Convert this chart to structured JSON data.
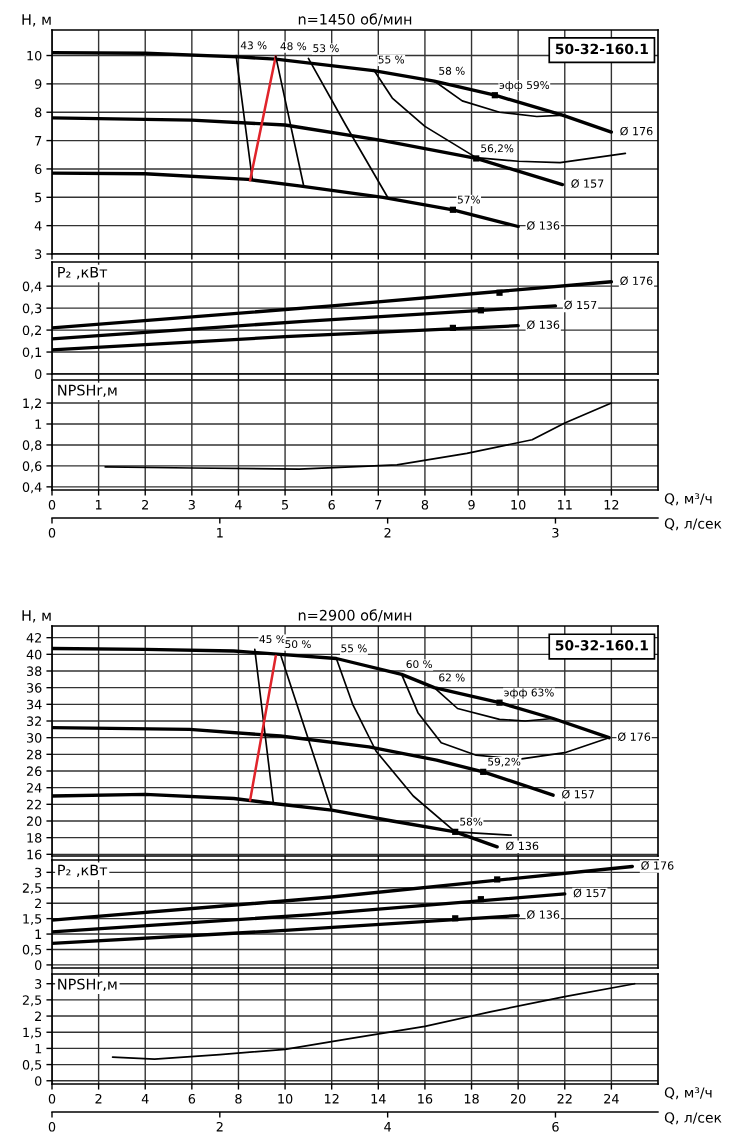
{
  "chart_data": [
    {
      "type": "line",
      "title": "n=1450 об/мин",
      "ylabel": "H, м",
      "xlim": [
        0,
        13
      ],
      "xticks": [
        0,
        1,
        2,
        3,
        4,
        5,
        6,
        7,
        8,
        9,
        10,
        11,
        12
      ],
      "ylim": [
        3,
        10.9
      ],
      "yticks": [
        3,
        4,
        5,
        6,
        7,
        8,
        9,
        10
      ],
      "tick_labels": "y",
      "grid": true,
      "legend": false,
      "marker": "none",
      "annotations": [
        "50-32-160.1",
        {
          "text": "43 %",
          "x": 3.95,
          "y": 10.0
        },
        {
          "text": "48 %",
          "x": 4.8,
          "y": 9.97
        },
        {
          "text": "53 %",
          "x": 5.5,
          "y": 9.9
        },
        {
          "text": "55 %",
          "x": 6.9,
          "y": 9.5
        },
        {
          "text": "58 %",
          "x": 8.2,
          "y": 9.1
        },
        {
          "text": "эфф 59%",
          "x": 9.5,
          "y": 8.6
        },
        {
          "text": "56,2%",
          "x": 9.1,
          "y": 6.37
        },
        {
          "text": "57%",
          "x": 8.6,
          "y": 4.56
        }
      ],
      "series": [
        {
          "name": "Ø 176",
          "color": "#000000",
          "x": [
            0,
            2,
            4,
            4.8,
            6.9,
            8.2,
            9.5,
            10.95,
            12
          ],
          "values": [
            10.1,
            10.08,
            9.95,
            9.87,
            9.47,
            9.1,
            8.6,
            7.9,
            7.3
          ]
        },
        {
          "name": "Ø 157",
          "color": "#000000",
          "x": [
            0,
            3,
            5,
            7.1,
            9.1,
            10.95
          ],
          "values": [
            7.8,
            7.72,
            7.55,
            7.0,
            6.37,
            5.45
          ]
        },
        {
          "name": "Ø 136",
          "color": "#000000",
          "x": [
            0,
            2,
            4.2,
            5.3,
            7.1,
            8.6,
            10
          ],
          "values": [
            5.85,
            5.83,
            5.63,
            5.4,
            5.0,
            4.56,
            3.97
          ]
        },
        {
          "color": "#000000",
          "x": [
            3.95,
            4.3
          ],
          "values": [
            10.0,
            5.6
          ]
        },
        {
          "color": "#e0242b",
          "x": [
            4.25,
            4.8
          ],
          "values": [
            5.6,
            9.97
          ]
        },
        {
          "color": "#000000",
          "x": [
            4.8,
            5.4
          ],
          "values": [
            9.97,
            5.4
          ]
        },
        {
          "color": "#000000",
          "x": [
            5.5,
            6.3,
            7.2
          ],
          "values": [
            9.9,
            7.55,
            5.0
          ]
        },
        {
          "color": "#000000",
          "x": [
            6.9,
            7.3,
            8.0,
            9.1,
            10.0,
            10.9,
            12.3
          ],
          "values": [
            9.5,
            8.5,
            7.5,
            6.4,
            6.27,
            6.22,
            6.55
          ]
        },
        {
          "color": "#000000",
          "x": [
            8.2,
            8.8,
            9.6,
            10.4,
            11.0
          ],
          "values": [
            9.1,
            8.4,
            8.0,
            7.85,
            7.9
          ]
        },
        {
          "type": "scatter",
          "marker": "square",
          "color": "#000000",
          "x": [
            9.5,
            9.1,
            8.6
          ],
          "values": [
            8.6,
            6.37,
            4.56
          ]
        }
      ]
    },
    {
      "type": "line",
      "ylabel": "P₂ ,кВт",
      "xlim": [
        0,
        13
      ],
      "xticks": [
        0,
        1,
        2,
        3,
        4,
        5,
        6,
        7,
        8,
        9,
        10,
        11,
        12
      ],
      "ylim": [
        0,
        0.51
      ],
      "yticks": [
        0,
        {
          "value": 0.1,
          "label": "0,1"
        },
        {
          "value": 0.2,
          "label": "0,2"
        },
        {
          "value": 0.3,
          "label": "0,3"
        },
        {
          "value": 0.4,
          "label": "0,4"
        }
      ],
      "tick_labels": "y",
      "grid": true,
      "legend": false,
      "marker": "none",
      "series": [
        {
          "name": "Ø 176",
          "color": "#000000",
          "x": [
            0,
            6,
            12
          ],
          "values": [
            0.21,
            0.31,
            0.42
          ]
        },
        {
          "name": "Ø 157",
          "color": "#000000",
          "x": [
            0,
            5.4,
            10.8
          ],
          "values": [
            0.16,
            0.24,
            0.31
          ]
        },
        {
          "name": "Ø 136",
          "color": "#000000",
          "x": [
            0,
            5,
            10
          ],
          "values": [
            0.11,
            0.17,
            0.22
          ]
        },
        {
          "type": "scatter",
          "marker": "square",
          "color": "#000000",
          "x": [
            9.6,
            9.2,
            8.6
          ],
          "values": [
            0.37,
            0.29,
            0.21
          ]
        }
      ]
    },
    {
      "type": "line",
      "ylabel": "NPSHr,м",
      "xlabel": "Q, м³/ч",
      "x2label": "Q, л/сек",
      "xlim": [
        0,
        13
      ],
      "xticks": [
        0,
        1,
        2,
        3,
        4,
        5,
        6,
        7,
        8,
        9,
        10,
        11,
        12
      ],
      "x2lim": [
        0,
        3.611
      ],
      "x2ticks": [
        0,
        1,
        2,
        3
      ],
      "ylim": [
        0.37,
        1.42
      ],
      "yticks": [
        {
          "value": 0.4,
          "label": "0,4"
        },
        {
          "value": 0.6,
          "label": "0,6"
        },
        {
          "value": 0.8,
          "label": "0,8"
        },
        1,
        {
          "value": 1.2,
          "label": "1,2"
        }
      ],
      "grid": true,
      "legend": false,
      "marker": "none",
      "series": [
        {
          "color": "#000000",
          "x": [
            1.14,
            3,
            5.3,
            7.4,
            8.9,
            10.3,
            11.0,
            12
          ],
          "values": [
            0.59,
            0.58,
            0.57,
            0.61,
            0.72,
            0.85,
            1.01,
            1.2
          ]
        }
      ]
    },
    {
      "type": "line",
      "title": "n=2900 об/мин",
      "ylabel": "H, м",
      "xlim": [
        0,
        26
      ],
      "xticks": [
        0,
        2,
        4,
        6,
        8,
        10,
        12,
        14,
        16,
        18,
        20,
        22,
        24
      ],
      "ylim": [
        15.8,
        43.4
      ],
      "yticks": [
        16,
        18,
        20,
        22,
        24,
        26,
        28,
        30,
        32,
        34,
        36,
        38,
        40,
        42
      ],
      "tick_labels": "y",
      "grid": true,
      "legend": false,
      "marker": "none",
      "annotations": [
        "50-32-160.1",
        {
          "text": "45 %",
          "x": 8.7,
          "y": 40.6
        },
        {
          "text": "50 %",
          "x": 9.8,
          "y": 40.0
        },
        {
          "text": "55 %",
          "x": 12.2,
          "y": 39.5
        },
        {
          "text": "60 %",
          "x": 15.0,
          "y": 37.6
        },
        {
          "text": "62 %",
          "x": 16.4,
          "y": 36.0
        },
        {
          "text": "эфф 63%",
          "x": 19.2,
          "y": 34.2
        },
        {
          "text": "59,2%",
          "x": 18.5,
          "y": 25.9
        },
        {
          "text": "58%",
          "x": 17.3,
          "y": 18.7
        }
      ],
      "series": [
        {
          "name": "Ø 176",
          "color": "#000000",
          "x": [
            0,
            4,
            7.8,
            9.8,
            12.2,
            15.0,
            16.4,
            19.2,
            21.5,
            23.9
          ],
          "values": [
            40.7,
            40.6,
            40.4,
            40.0,
            39.5,
            37.6,
            36.0,
            34.2,
            32.3,
            30.0
          ]
        },
        {
          "name": "Ø 157",
          "color": "#000000",
          "x": [
            0,
            5.9,
            9.8,
            13.6,
            16.5,
            18.5,
            21.5
          ],
          "values": [
            31.2,
            31.0,
            30.2,
            28.9,
            27.3,
            25.9,
            23.1
          ]
        },
        {
          "name": "Ø 136",
          "color": "#000000",
          "x": [
            0,
            4.0,
            7.8,
            9.5,
            12.0,
            14.6,
            17.3,
            19.1
          ],
          "values": [
            23.0,
            23.2,
            22.7,
            22.1,
            21.3,
            20.0,
            18.7,
            16.9
          ]
        },
        {
          "color": "#000000",
          "x": [
            8.7,
            9.5
          ],
          "values": [
            40.6,
            22.1
          ]
        },
        {
          "color": "#e0242b",
          "x": [
            8.5,
            9.6
          ],
          "values": [
            22.5,
            39.8
          ]
        },
        {
          "color": "#000000",
          "x": [
            9.8,
            12.0
          ],
          "values": [
            40.0,
            21.3
          ]
        },
        {
          "color": "#000000",
          "x": [
            12.2,
            12.9,
            13.9,
            15.5,
            17.3,
            19.7
          ],
          "values": [
            39.5,
            34.0,
            28.4,
            23.0,
            18.7,
            18.3
          ]
        },
        {
          "color": "#000000",
          "x": [
            15.0,
            15.7,
            16.7,
            18.2,
            20.0,
            22.0,
            23.9
          ],
          "values": [
            37.6,
            33.0,
            29.4,
            27.9,
            27.4,
            28.2,
            30.0
          ]
        },
        {
          "color": "#000000",
          "x": [
            16.4,
            17.4,
            19.2,
            20.3,
            21.5
          ],
          "values": [
            36.0,
            33.5,
            32.2,
            32.0,
            32.3
          ]
        },
        {
          "type": "scatter",
          "marker": "square",
          "color": "#000000",
          "x": [
            19.2,
            18.5,
            17.3
          ],
          "values": [
            34.2,
            25.9,
            18.7
          ]
        }
      ]
    },
    {
      "type": "line",
      "ylabel": "P₂ ,кВт",
      "xlim": [
        0,
        26
      ],
      "xticks": [
        0,
        2,
        4,
        6,
        8,
        10,
        12,
        14,
        16,
        18,
        20,
        22,
        24
      ],
      "ylim": [
        -0.1,
        3.4
      ],
      "yticks": [
        0,
        {
          "value": 0.5,
          "label": "0,5"
        },
        1,
        {
          "value": 1.5,
          "label": "1,5"
        },
        2,
        {
          "value": 2.5,
          "label": "2,5"
        },
        3
      ],
      "tick_labels": "y",
      "grid": true,
      "legend": false,
      "marker": "none",
      "series": [
        {
          "name": "Ø 176",
          "color": "#000000",
          "x": [
            0,
            12,
            24.9
          ],
          "values": [
            1.45,
            2.2,
            3.19
          ]
        },
        {
          "name": "Ø 157",
          "color": "#000000",
          "x": [
            0,
            11,
            22.0
          ],
          "values": [
            1.07,
            1.62,
            2.3
          ]
        },
        {
          "name": "Ø 136",
          "color": "#000000",
          "x": [
            0,
            10,
            20.0
          ],
          "values": [
            0.7,
            1.12,
            1.6
          ]
        },
        {
          "type": "scatter",
          "marker": "square",
          "color": "#000000",
          "x": [
            19.1,
            18.4,
            17.3
          ],
          "values": [
            2.77,
            2.13,
            1.51
          ]
        }
      ]
    },
    {
      "type": "line",
      "ylabel": "NPSHr,м",
      "xlabel": "Q, м³/ч",
      "x2label": "Q, л/сек",
      "xlim": [
        0,
        26
      ],
      "xticks": [
        0,
        2,
        4,
        6,
        8,
        10,
        12,
        14,
        16,
        18,
        20,
        22,
        24
      ],
      "x2lim": [
        0,
        7.222
      ],
      "x2ticks": [
        0,
        2,
        4,
        6
      ],
      "ylim": [
        -0.1,
        3.3
      ],
      "yticks": [
        0,
        {
          "value": 0.5,
          "label": "0,5"
        },
        1,
        {
          "value": 1.5,
          "label": "1,5"
        },
        2,
        {
          "value": 2.5,
          "label": "2,5"
        },
        3
      ],
      "grid": true,
      "legend": false,
      "marker": "none",
      "series": [
        {
          "color": "#000000",
          "x": [
            2.6,
            4.4,
            7.2,
            10.0,
            12.9,
            16.0,
            18.8,
            22.0,
            25.0
          ],
          "values": [
            0.73,
            0.67,
            0.81,
            0.97,
            1.32,
            1.68,
            2.13,
            2.6,
            3.0
          ]
        }
      ]
    }
  ]
}
